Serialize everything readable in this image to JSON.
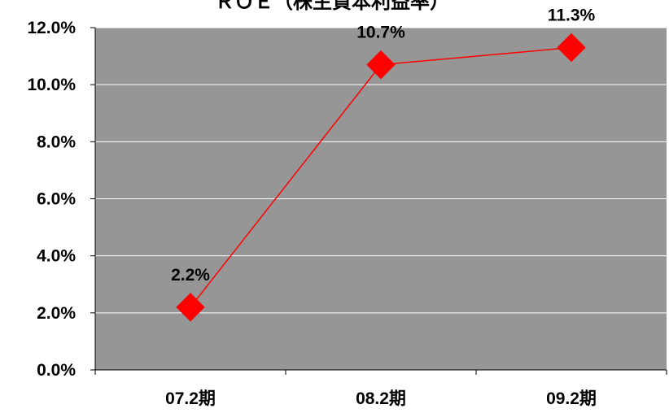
{
  "chart_data": {
    "type": "line",
    "title": "ＲＯＥ（株主資本利益率）",
    "categories": [
      "07.2期",
      "08.2期",
      "09.2期"
    ],
    "series": [
      {
        "values": [
          2.2,
          10.7,
          11.3
        ]
      }
    ],
    "data_labels": [
      "2.2%",
      "10.7%",
      "11.3%"
    ],
    "y_ticks": [
      "0.0%",
      "2.0%",
      "4.0%",
      "6.0%",
      "8.0%",
      "10.0%",
      "12.0%"
    ],
    "ylim": [
      0,
      12
    ],
    "y_step": 2,
    "grid": true,
    "colors": {
      "plot_background": "#969696",
      "line": "#ff0000",
      "marker": "#ff0000",
      "gridline": "#ffffff"
    }
  }
}
